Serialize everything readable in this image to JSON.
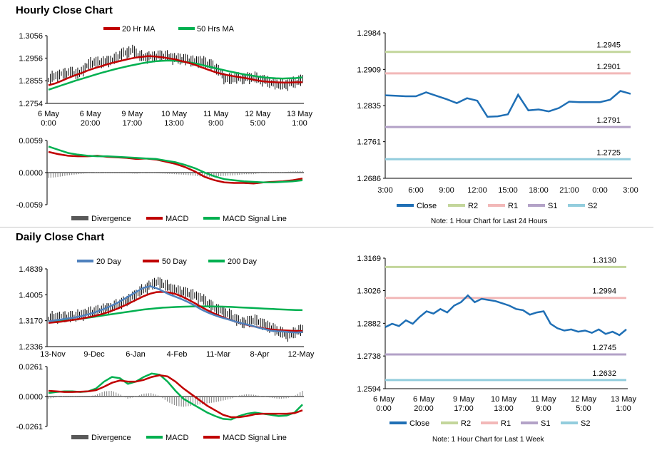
{
  "sections": {
    "hourly_title": "Hourly Close Chart",
    "daily_title": "Daily Close Chart"
  },
  "colors": {
    "ma_short": "#c00000",
    "ma_long": "#00b050",
    "ma_20day": "#4f81bd",
    "close_line": "#1f6fb5",
    "r2": "#c3d69b",
    "r1": "#f2b8b8",
    "s1": "#b3a2c7",
    "s2": "#93cddd",
    "divergence": "#7f7f7f",
    "price_bars": "#000000"
  },
  "notes": {
    "hourly": "Note: 1 Hour Chart for Last 24 Hours",
    "daily": "Note: 1 Hour Chart for  Last 1 Week"
  },
  "chart_data": [
    {
      "id": "hourly_price",
      "type": "line",
      "legend": [
        "20 Hr MA",
        "50 Hrs MA"
      ],
      "legend_position": "top",
      "yticks": [
        "1.3056",
        "1.2956",
        "1.2855",
        "1.2754"
      ],
      "ylim": [
        1.2754,
        1.3056
      ],
      "xticks": [
        "6 May\n0:00",
        "6 May\n20:00",
        "9 May\n17:00",
        "10 May\n13:00",
        "11 May\n9:00",
        "12 May\n5:00",
        "13 May\n1:00"
      ],
      "price": [
        1.2862,
        1.2875,
        1.2883,
        1.2889,
        1.2893,
        1.2884,
        1.2912,
        1.2935,
        1.2937,
        1.2938,
        1.2945,
        1.2951,
        1.2975,
        1.2981,
        1.2992,
        1.2965,
        1.296,
        1.2962,
        1.2965,
        1.2968,
        1.296,
        1.2955,
        1.2952,
        1.2948,
        1.294,
        1.2945,
        1.2935,
        1.2925,
        1.2905,
        1.287,
        1.286,
        1.287,
        1.2865,
        1.2868,
        1.287,
        1.286,
        1.2855,
        1.2845,
        1.284,
        1.2835,
        1.2845,
        1.285,
        1.286
      ],
      "ma20": [
        1.2835,
        1.2843,
        1.2855,
        1.2868,
        1.288,
        1.289,
        1.2902,
        1.2912,
        1.2921,
        1.293,
        1.2938,
        1.2945,
        1.2952,
        1.2958,
        1.2962,
        1.2965,
        1.2963,
        1.296,
        1.2955,
        1.295,
        1.2942,
        1.2935,
        1.2925,
        1.2914,
        1.2903,
        1.2893,
        1.2885,
        1.2879,
        1.2874,
        1.2869,
        1.2864,
        1.2858,
        1.2853,
        1.285,
        1.2848,
        1.2847,
        1.2847,
        1.2848,
        1.2848
      ],
      "ma50": [
        1.2815,
        1.2825,
        1.2835,
        1.2845,
        1.2855,
        1.2864,
        1.2873,
        1.2882,
        1.2891,
        1.2899,
        1.2907,
        1.2914,
        1.2921,
        1.2927,
        1.2933,
        1.2938,
        1.2942,
        1.2944,
        1.2945,
        1.2944,
        1.2941,
        1.2937,
        1.2932,
        1.2925,
        1.2918,
        1.2911,
        1.2904,
        1.2897,
        1.2891,
        1.2885,
        1.288,
        1.2875,
        1.2871,
        1.2868,
        1.2866,
        1.2865,
        1.2866,
        1.2867,
        1.287
      ]
    },
    {
      "id": "hourly_macd",
      "type": "line",
      "legend": [
        "Divergence",
        "MACD",
        "MACD Signal Line"
      ],
      "legend_position": "bottom",
      "yticks": [
        "0.0059",
        "0.0000",
        "-0.0059"
      ],
      "ylim": [
        -0.0059,
        0.0059
      ],
      "macd": [
        0.0038,
        0.0034,
        0.0031,
        0.003,
        0.003,
        0.0031,
        0.0029,
        0.0028,
        0.0027,
        0.0025,
        0.0026,
        0.0024,
        0.002,
        0.0016,
        0.001,
        0.0002,
        -0.0008,
        -0.0014,
        -0.0018,
        -0.0019,
        -0.0019,
        -0.002,
        -0.0018,
        -0.0017,
        -0.0016,
        -0.0014,
        -0.0011
      ],
      "signal": [
        0.0048,
        0.0042,
        0.0036,
        0.0033,
        0.0031,
        0.003,
        0.003,
        0.0029,
        0.0028,
        0.0027,
        0.0026,
        0.0025,
        0.0022,
        0.0019,
        0.0014,
        0.0008,
        0.0,
        -0.0007,
        -0.0012,
        -0.0014,
        -0.0016,
        -0.0017,
        -0.0018,
        -0.0018,
        -0.0017,
        -0.0016,
        -0.0014
      ]
    },
    {
      "id": "hourly_levels",
      "type": "line",
      "legend": [
        "Close",
        "R2",
        "R1",
        "S1",
        "S2"
      ],
      "legend_position": "bottom",
      "yticks": [
        "1.2984",
        "1.2909",
        "1.2835",
        "1.2761",
        "1.2686"
      ],
      "ylim": [
        1.2686,
        1.2984
      ],
      "xticks": [
        "3:00",
        "6:00",
        "9:00",
        "12:00",
        "15:00",
        "18:00",
        "21:00",
        "0:00",
        "3:00"
      ],
      "levels": {
        "R2": 1.2945,
        "R1": 1.2901,
        "S1": 1.2791,
        "S2": 1.2725
      },
      "level_labels": {
        "R2": "1.2945",
        "R1": "1.2901",
        "S1": "1.2791",
        "S2": "1.2725"
      },
      "close": [
        1.2856,
        1.2855,
        1.2854,
        1.2854,
        1.2862,
        1.2855,
        1.2848,
        1.284,
        1.285,
        1.2845,
        1.2812,
        1.2813,
        1.2817,
        1.2857,
        1.2825,
        1.2827,
        1.2823,
        1.283,
        1.2843,
        1.2842,
        1.2842,
        1.2842,
        1.2847,
        1.2865,
        1.2859
      ]
    },
    {
      "id": "daily_price",
      "type": "line",
      "legend": [
        "20 Day",
        "50 Day",
        "200 Day"
      ],
      "legend_position": "top",
      "yticks": [
        "1.4839",
        "1.4005",
        "1.3170",
        "1.2336"
      ],
      "ylim": [
        1.2336,
        1.4839
      ],
      "xticks": [
        "13-Nov",
        "9-Dec",
        "6-Jan",
        "4-Feb",
        "11-Mar",
        "8-Apr",
        "12-May"
      ],
      "price": [
        1.325,
        1.328,
        1.33,
        1.329,
        1.331,
        1.335,
        1.342,
        1.345,
        1.35,
        1.356,
        1.36,
        1.37,
        1.378,
        1.39,
        1.405,
        1.418,
        1.43,
        1.442,
        1.435,
        1.425,
        1.415,
        1.41,
        1.405,
        1.398,
        1.39,
        1.375,
        1.36,
        1.35,
        1.342,
        1.33,
        1.315,
        1.31,
        1.32,
        1.315,
        1.305,
        1.295,
        1.285,
        1.275,
        1.27,
        1.282,
        1.288
      ],
      "ma20": [
        1.315,
        1.318,
        1.321,
        1.324,
        1.327,
        1.331,
        1.336,
        1.342,
        1.349,
        1.357,
        1.366,
        1.376,
        1.388,
        1.4,
        1.412,
        1.423,
        1.428,
        1.422,
        1.412,
        1.402,
        1.394,
        1.386,
        1.377,
        1.366,
        1.354,
        1.344,
        1.336,
        1.329,
        1.323,
        1.317,
        1.311,
        1.306,
        1.301,
        1.295,
        1.29,
        1.285,
        1.283,
        1.282,
        1.28,
        1.279,
        1.28
      ],
      "ma50": [
        1.31,
        1.312,
        1.314,
        1.317,
        1.32,
        1.323,
        1.327,
        1.331,
        1.336,
        1.342,
        1.349,
        1.357,
        1.366,
        1.376,
        1.386,
        1.396,
        1.404,
        1.409,
        1.41,
        1.408,
        1.403,
        1.395,
        1.385,
        1.374,
        1.362,
        1.351,
        1.341,
        1.332,
        1.324,
        1.317,
        1.311,
        1.305,
        1.3,
        1.296,
        1.292,
        1.289,
        1.287,
        1.286,
        1.285,
        1.284,
        1.284
      ],
      "ma200": [
        1.312,
        1.314,
        1.316,
        1.318,
        1.32,
        1.323,
        1.326,
        1.329,
        1.332,
        1.335,
        1.338,
        1.341,
        1.344,
        1.347,
        1.35,
        1.353,
        1.355,
        1.357,
        1.359,
        1.36,
        1.361,
        1.362,
        1.3625,
        1.363,
        1.363,
        1.363,
        1.3628,
        1.3625,
        1.362,
        1.361,
        1.36,
        1.359,
        1.358,
        1.357,
        1.356,
        1.355,
        1.354,
        1.353,
        1.352,
        1.3515,
        1.351
      ]
    },
    {
      "id": "daily_macd",
      "type": "line",
      "legend": [
        "Divergence",
        "MACD",
        "MACD Signal Line"
      ],
      "legend_position": "bottom",
      "yticks": [
        "0.0261",
        "0.0000",
        "-0.0261"
      ],
      "ylim": [
        -0.0261,
        0.0261
      ],
      "macd": [
        0.003,
        0.004,
        0.0045,
        0.0045,
        0.004,
        0.0045,
        0.007,
        0.013,
        0.017,
        0.016,
        0.011,
        0.013,
        0.017,
        0.02,
        0.019,
        0.013,
        0.005,
        -0.002,
        -0.006,
        -0.01,
        -0.014,
        -0.017,
        -0.0195,
        -0.02,
        -0.017,
        -0.015,
        -0.014,
        -0.015,
        -0.016,
        -0.017,
        -0.0165,
        -0.014,
        -0.007
      ],
      "signal": [
        0.005,
        0.0045,
        0.004,
        0.004,
        0.0042,
        0.0045,
        0.0055,
        0.0085,
        0.012,
        0.014,
        0.013,
        0.013,
        0.0145,
        0.017,
        0.0185,
        0.0175,
        0.013,
        0.007,
        0.002,
        -0.003,
        -0.008,
        -0.012,
        -0.016,
        -0.018,
        -0.018,
        -0.017,
        -0.0155,
        -0.015,
        -0.015,
        -0.015,
        -0.015,
        -0.0145,
        -0.012
      ]
    },
    {
      "id": "daily_levels",
      "type": "line",
      "legend": [
        "Close",
        "R2",
        "R1",
        "S1",
        "S2"
      ],
      "legend_position": "bottom",
      "yticks": [
        "1.3169",
        "1.3026",
        "1.2882",
        "1.2738",
        "1.2594"
      ],
      "ylim": [
        1.2594,
        1.3169
      ],
      "xticks": [
        "6 May\n0:00",
        "6 May\n20:00",
        "9 May\n17:00",
        "10 May\n13:00",
        "11 May\n9:00",
        "12 May\n5:00",
        "13 May\n1:00"
      ],
      "levels": {
        "R2": 1.313,
        "R1": 1.2994,
        "S1": 1.2745,
        "S2": 1.2632
      },
      "level_labels": {
        "R2": "1.3130",
        "R1": "1.2994",
        "S1": "1.2745",
        "S2": "1.2632"
      },
      "close": [
        1.2865,
        1.288,
        1.287,
        1.2895,
        1.288,
        1.291,
        1.2935,
        1.2925,
        1.2945,
        1.293,
        1.296,
        1.2975,
        1.3005,
        1.2975,
        1.299,
        1.2985,
        1.298,
        1.297,
        1.296,
        1.2945,
        1.294,
        1.292,
        1.293,
        1.2935,
        1.288,
        1.286,
        1.285,
        1.2855,
        1.2845,
        1.285,
        1.284,
        1.2855,
        1.2835,
        1.2845,
        1.283,
        1.2855
      ]
    }
  ]
}
